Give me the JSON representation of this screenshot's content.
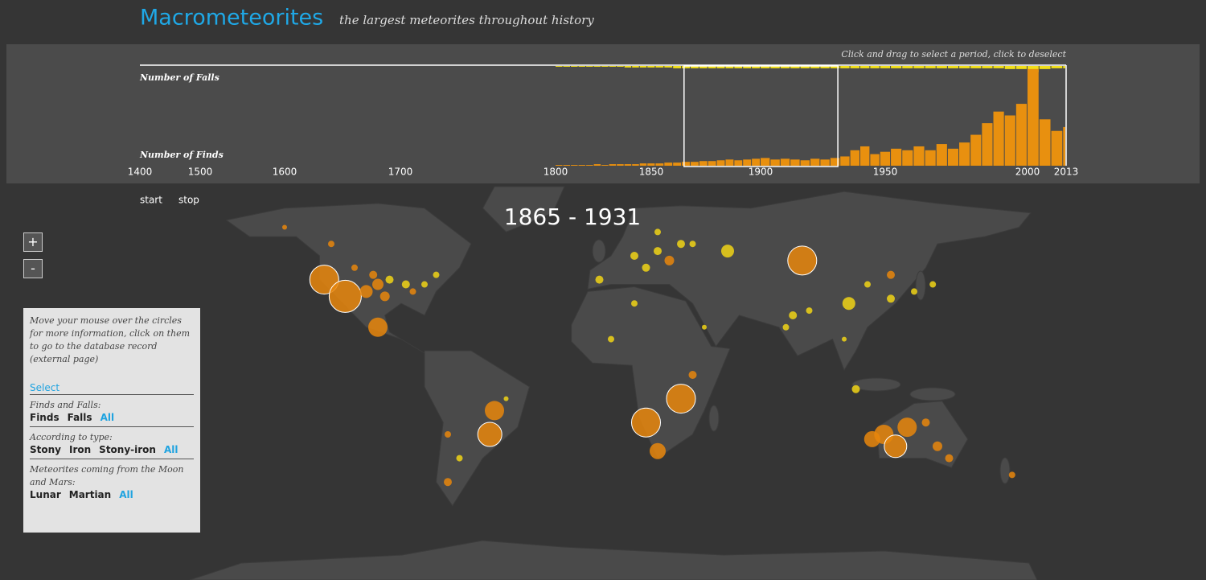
{
  "header": {
    "title": "Macrometeorites",
    "subtitle": "the largest meteorites throughout history"
  },
  "timeline": {
    "hint": "Click and drag to select a period, click to deselect"
  },
  "chart_data": {
    "type": "bar",
    "x": [
      1800,
      1804,
      1808,
      1812,
      1816,
      1820,
      1824,
      1828,
      1832,
      1836,
      1840,
      1844,
      1848,
      1852,
      1856,
      1860,
      1864,
      1868,
      1872,
      1876,
      1880,
      1884,
      1888,
      1892,
      1896,
      1900,
      1904,
      1908,
      1912,
      1916,
      1920,
      1924,
      1928,
      1932,
      1936,
      1940,
      1944,
      1948,
      1952,
      1956,
      1960,
      1964,
      1968,
      1972,
      1976,
      1980,
      1984,
      1988,
      1992,
      1996,
      2000,
      2004,
      2008,
      2012
    ],
    "series": [
      {
        "name": "Number of Falls",
        "color": "#f2e01a",
        "values": [
          1,
          1,
          1,
          1,
          1,
          1,
          1,
          1,
          1,
          2,
          2,
          2,
          2,
          2,
          2,
          3,
          3,
          3,
          3,
          3,
          3,
          3,
          3,
          3,
          3,
          3,
          3,
          3,
          3,
          3,
          3,
          3,
          3,
          3,
          3,
          3,
          3,
          3,
          3,
          3,
          3,
          3,
          3,
          3,
          3,
          3,
          3,
          3,
          4,
          4,
          8,
          4,
          3,
          3
        ]
      },
      {
        "name": "Number of Finds",
        "color": "#e8900f",
        "values": [
          1,
          1,
          1,
          1,
          1,
          2,
          1,
          2,
          2,
          2,
          2,
          3,
          3,
          3,
          4,
          4,
          5,
          5,
          6,
          6,
          7,
          8,
          7,
          8,
          9,
          10,
          8,
          9,
          8,
          7,
          9,
          8,
          10,
          12,
          20,
          25,
          15,
          18,
          22,
          20,
          25,
          20,
          28,
          22,
          30,
          40,
          55,
          70,
          65,
          80,
          125,
          60,
          45,
          50
        ]
      }
    ],
    "xlim": [
      1400,
      2013
    ],
    "xticks": [
      1400,
      1500,
      1600,
      1700,
      1800,
      1850,
      1900,
      1950,
      2000,
      2013
    ],
    "ylim": [
      0,
      130
    ],
    "selection": [
      1865,
      1931
    ]
  },
  "playback": {
    "start": "start",
    "stop": "stop"
  },
  "zoom": {
    "in": "+",
    "out": "-"
  },
  "map": {
    "selection_label": "1865 - 1931",
    "find_color": "#e8860c",
    "fall_color": "#f0d316",
    "finds": [
      [
        -123,
        40,
        18
      ],
      [
        -114,
        33,
        20
      ],
      [
        -105,
        35,
        8
      ],
      [
        -100,
        38,
        7
      ],
      [
        -97,
        33,
        6
      ],
      [
        -85,
        35,
        4
      ],
      [
        -110,
        45,
        4
      ],
      [
        -102,
        42,
        5
      ],
      [
        -100,
        20,
        12
      ],
      [
        -120,
        55,
        4
      ],
      [
        -140,
        62,
        3
      ],
      [
        -50,
        -15,
        12
      ],
      [
        -52,
        -25,
        15
      ],
      [
        -70,
        -25,
        4
      ],
      [
        -70,
        -45,
        5
      ],
      [
        30,
        -10,
        18
      ],
      [
        15,
        -20,
        18
      ],
      [
        20,
        -32,
        10
      ],
      [
        35,
        0,
        5
      ],
      [
        25,
        48,
        6
      ],
      [
        82,
        48,
        18
      ],
      [
        120,
        42,
        5
      ],
      [
        117,
        -25,
        12
      ],
      [
        127,
        -22,
        12
      ],
      [
        122,
        -30,
        14
      ],
      [
        112,
        -27,
        10
      ],
      [
        140,
        -30,
        6
      ],
      [
        145,
        -35,
        5
      ],
      [
        135,
        -20,
        5
      ],
      [
        172,
        -42,
        4
      ]
    ],
    "falls": [
      [
        -95,
        40,
        5
      ],
      [
        -88,
        38,
        5
      ],
      [
        -80,
        38,
        4
      ],
      [
        -75,
        42,
        4
      ],
      [
        -65,
        -35,
        4
      ],
      [
        -45,
        -10,
        3
      ],
      [
        10,
        30,
        4
      ],
      [
        0,
        15,
        4
      ],
      [
        40,
        20,
        3
      ],
      [
        10,
        50,
        5
      ],
      [
        20,
        52,
        5
      ],
      [
        30,
        55,
        5
      ],
      [
        -5,
        40,
        5
      ],
      [
        15,
        45,
        5
      ],
      [
        35,
        55,
        4
      ],
      [
        50,
        52,
        8
      ],
      [
        20,
        60,
        4
      ],
      [
        102,
        30,
        8
      ],
      [
        78,
        25,
        5
      ],
      [
        85,
        27,
        4
      ],
      [
        75,
        20,
        4
      ],
      [
        110,
        38,
        4
      ],
      [
        120,
        32,
        5
      ],
      [
        130,
        35,
        4
      ],
      [
        138,
        38,
        4
      ],
      [
        100,
        15,
        3
      ],
      [
        105,
        -6,
        5
      ]
    ]
  },
  "panel": {
    "instructions": "Move your mouse over the circles for more information, click on them to go to the database record (external page)",
    "select_heading": "Select",
    "groups": [
      {
        "label": "Finds and Falls:",
        "options": [
          "Finds",
          "Falls"
        ],
        "all": "All"
      },
      {
        "label": "According to type:",
        "options": [
          "Stony",
          "Iron",
          "Stony-iron"
        ],
        "all": "All"
      },
      {
        "label": "Meteorites coming from the Moon and Mars:",
        "options": [
          "Lunar",
          "Martian"
        ],
        "all": "All"
      }
    ]
  }
}
